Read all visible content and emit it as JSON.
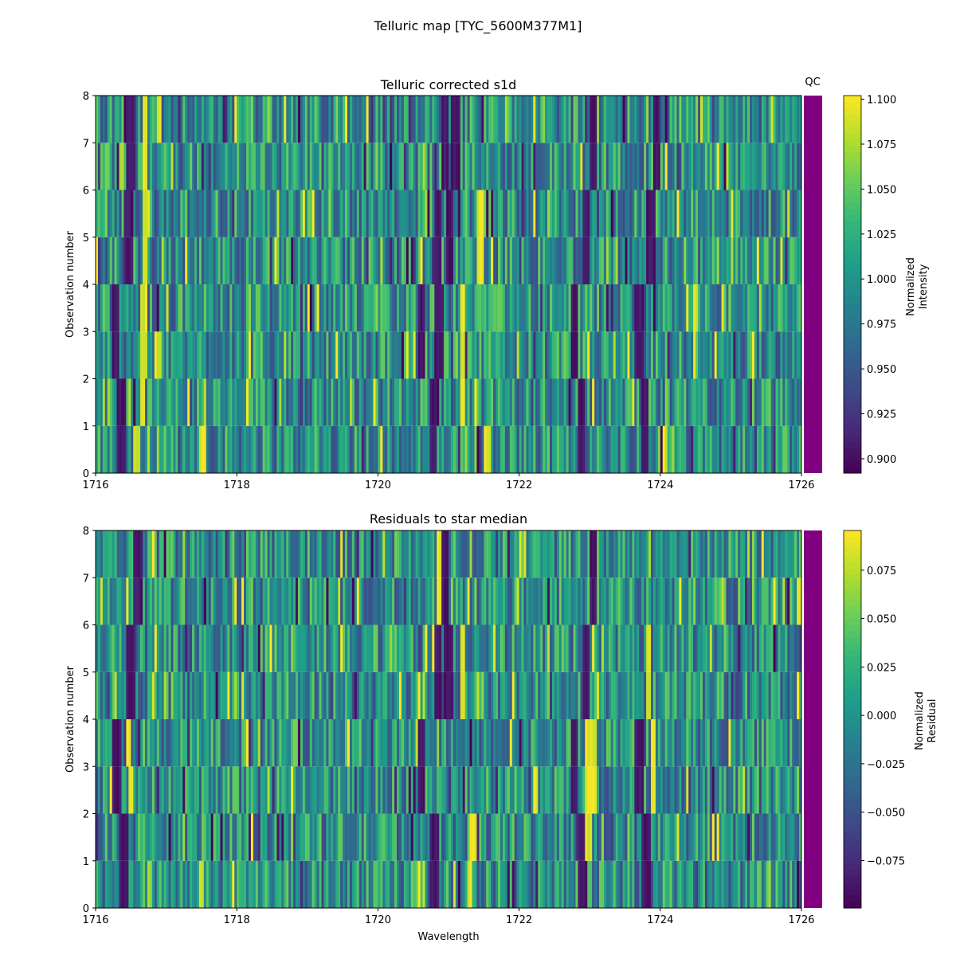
{
  "figure": {
    "suptitle": "Telluric map [TYC_5600M377M1]"
  },
  "colors": {
    "qc": "#800080",
    "viridis": [
      "#440154",
      "#482878",
      "#3e4989",
      "#31688e",
      "#26828e",
      "#1f9e89",
      "#35b779",
      "#6ece58",
      "#b5de2b",
      "#fde725"
    ]
  },
  "chart_data": [
    {
      "type": "heatmap",
      "title": "Telluric corrected s1d",
      "xlabel": "",
      "ylabel": "Observation number",
      "xlim": [
        1716,
        1726
      ],
      "ylim": [
        0,
        8
      ],
      "xticks": [
        1716,
        1718,
        1720,
        1722,
        1724,
        1726
      ],
      "yticks": [
        0,
        1,
        2,
        3,
        4,
        5,
        6,
        7,
        8
      ],
      "rows": [
        {
          "range": [
            0,
            1
          ],
          "absorption_lines": [
            16.37,
            20.79,
            22.88,
            23.79
          ],
          "bright_lines": [
            17.52,
            21.55,
            16.58
          ]
        },
        {
          "range": [
            1,
            2
          ],
          "absorption_lines": [
            16.37,
            20.8,
            22.88,
            23.79
          ],
          "bright_lines": [
            16.67,
            21.2
          ]
        },
        {
          "range": [
            2,
            3
          ],
          "absorption_lines": [
            16.29,
            20.62,
            20.87,
            22.78,
            23.7
          ],
          "bright_lines": [
            16.68,
            16.88,
            21.2
          ]
        },
        {
          "range": [
            3,
            4
          ],
          "absorption_lines": [
            16.29,
            20.62,
            20.87,
            22.78,
            23.7
          ],
          "bright_lines": [
            16.68,
            21.2,
            24.5
          ]
        },
        {
          "range": [
            4,
            5
          ],
          "absorption_lines": [
            16.47,
            20.86,
            21.02,
            22.96,
            23.87
          ],
          "bright_lines": [
            16.7,
            21.45
          ]
        },
        {
          "range": [
            5,
            6
          ],
          "absorption_lines": [
            16.47,
            20.86,
            21.02,
            22.96,
            23.87
          ],
          "bright_lines": [
            16.7,
            21.45
          ]
        },
        {
          "range": [
            6,
            7
          ],
          "absorption_lines": [
            16.5,
            20.95,
            21.1,
            23.04,
            23.95
          ],
          "bright_lines": [
            16.7
          ]
        },
        {
          "range": [
            7,
            8
          ],
          "absorption_lines": [
            16.5,
            20.95,
            21.1,
            23.04,
            23.95
          ],
          "bright_lines": [
            16.7,
            16.9
          ]
        }
      ],
      "colorbar": {
        "label_lines": [
          "Normalized",
          "Intensity"
        ],
        "min": 0.892,
        "max": 1.102,
        "ticks": [
          0.9,
          0.925,
          0.95,
          0.975,
          1.0,
          1.025,
          1.05,
          1.075,
          1.1
        ],
        "tick_labels": [
          "0.900",
          "0.925",
          "0.950",
          "0.975",
          "1.000",
          "1.025",
          "1.050",
          "1.075",
          "1.100"
        ]
      },
      "qc": {
        "label": "QC",
        "color": "#800080"
      }
    },
    {
      "type": "heatmap",
      "title": "Residuals to star median",
      "xlabel": "Wavelength",
      "ylabel": "Observation number",
      "xlim": [
        1716,
        1726
      ],
      "ylim": [
        0,
        8
      ],
      "xticks": [
        1716,
        1718,
        1720,
        1722,
        1724,
        1726
      ],
      "yticks": [
        0,
        1,
        2,
        3,
        4,
        5,
        6,
        7,
        8
      ],
      "rows": [
        {
          "range": [
            0,
            1
          ],
          "absorption_lines": [
            16.4,
            20.8,
            22.9,
            23.8
          ],
          "bright_lines": [
            17.5,
            21.3
          ]
        },
        {
          "range": [
            1,
            2
          ],
          "absorption_lines": [
            16.4,
            20.8,
            22.9,
            23.8
          ],
          "bright_lines": [
            22.98,
            21.35
          ]
        },
        {
          "range": [
            2,
            3
          ],
          "absorption_lines": [
            16.3,
            20.62,
            22.78,
            23.7
          ],
          "bright_lines": [
            22.98,
            23.05,
            23.9,
            16.5
          ]
        },
        {
          "range": [
            3,
            4
          ],
          "absorption_lines": [
            16.3,
            20.62,
            22.78,
            23.7
          ],
          "bright_lines": [
            22.98,
            23.05,
            23.9
          ]
        },
        {
          "range": [
            4,
            5
          ],
          "absorption_lines": [
            16.5,
            20.84,
            21.0,
            22.96
          ],
          "bright_lines": [
            21.2,
            23.83
          ]
        },
        {
          "range": [
            5,
            6
          ],
          "absorption_lines": [
            16.5,
            20.84,
            21.0,
            22.96
          ],
          "bright_lines": [
            21.2,
            23.83
          ]
        },
        {
          "range": [
            6,
            7
          ],
          "absorption_lines": [
            16.6,
            20.95,
            23.04
          ],
          "bright_lines": [
            20.86,
            25.98
          ]
        },
        {
          "range": [
            7,
            8
          ],
          "absorption_lines": [
            16.6,
            20.95,
            23.04
          ],
          "bright_lines": [
            20.86
          ]
        }
      ],
      "colorbar": {
        "label_lines": [
          "Normalized",
          "Residual"
        ],
        "min": -0.0995,
        "max": 0.0955,
        "ticks": [
          -0.075,
          -0.05,
          -0.025,
          0.0,
          0.025,
          0.05,
          0.075
        ],
        "tick_labels": [
          "−0.075",
          "−0.050",
          "−0.025",
          "0.000",
          "0.025",
          "0.050",
          "0.075"
        ]
      },
      "qc": {
        "label": "",
        "color": "#800080"
      }
    }
  ]
}
